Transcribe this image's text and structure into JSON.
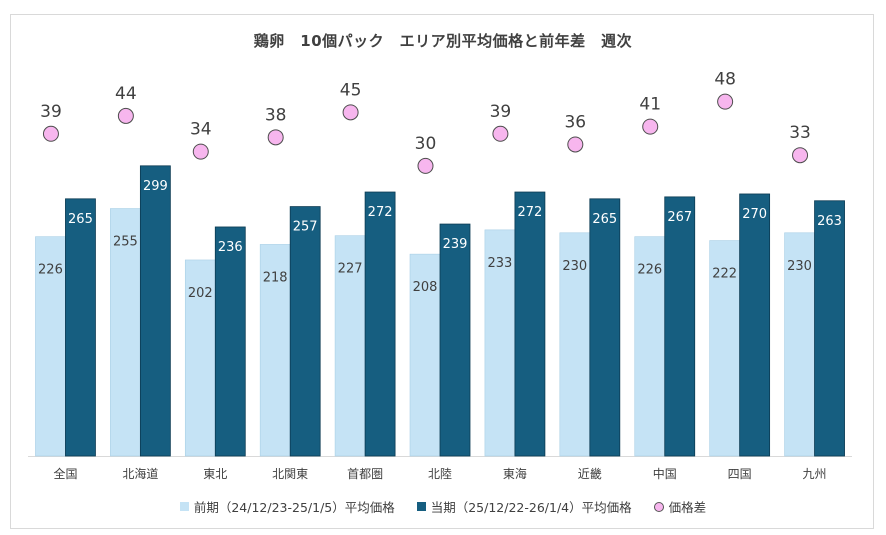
{
  "chart_data": {
    "type": "bar",
    "title": "鶏卵　10個パック　エリア別平均価格と前年差　週次",
    "categories": [
      "全国",
      "北海道",
      "東北",
      "北関東",
      "首都圏",
      "北陸",
      "東海",
      "近畿",
      "中国",
      "四国",
      "九州"
    ],
    "series": [
      {
        "name": "前期（24/12/23-25/1/5）平均価格",
        "color": "#c5e3f5",
        "values": [
          226,
          255,
          202,
          218,
          227,
          208,
          233,
          230,
          226,
          222,
          230
        ]
      },
      {
        "name": "当期（25/12/22-26/1/4）平均価格",
        "color": "#165e80",
        "values": [
          265,
          299,
          236,
          257,
          272,
          239,
          272,
          265,
          267,
          270,
          263
        ]
      },
      {
        "name": "価格差",
        "color": "#f7b6ee",
        "values": [
          39,
          44,
          34,
          38,
          45,
          30,
          39,
          36,
          41,
          48,
          33
        ]
      }
    ],
    "ylim": [
      0,
      400
    ],
    "grid": false,
    "legend": "bottom"
  }
}
